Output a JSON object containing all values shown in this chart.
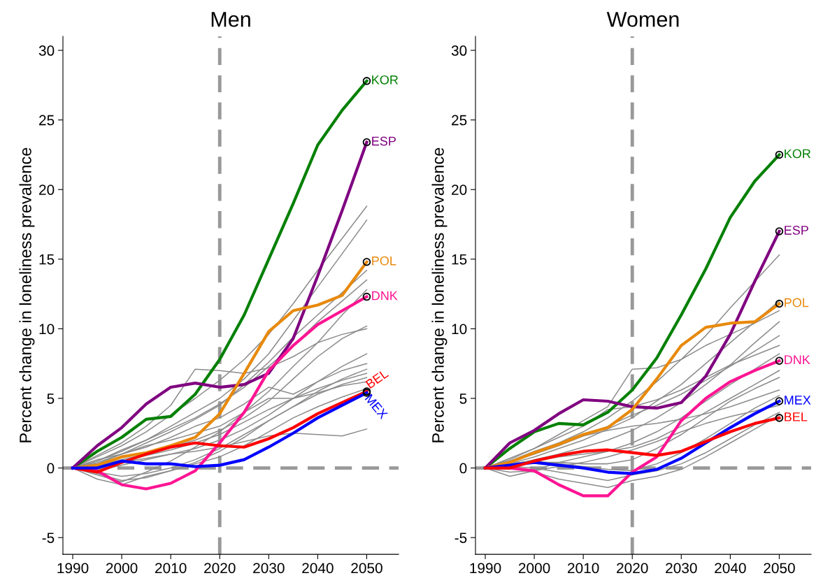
{
  "chart_data": [
    {
      "type": "line",
      "title": "Men",
      "ylabel": "Percent change in loneliness prevalence",
      "x": [
        1990,
        1995,
        2000,
        2005,
        2010,
        2015,
        2020,
        2025,
        2030,
        2035,
        2040,
        2045,
        2050
      ],
      "xlim": [
        1988,
        2056.5
      ],
      "xticks": [
        1990,
        2000,
        2010,
        2020,
        2030,
        2040,
        2050
      ],
      "ylim": [
        -6.2,
        31
      ],
      "yticks": [
        {
          "value": -5,
          "label": "-5"
        },
        0,
        5,
        10,
        15,
        20,
        25,
        30
      ],
      "grid": false,
      "legend": false,
      "ref_lines": [
        {
          "axis": "x",
          "value": 2020,
          "color": "#999999",
          "line_style": "dashed"
        },
        {
          "axis": "y",
          "value": 0,
          "color": "#999999",
          "line_style": "dashed"
        }
      ],
      "series": [
        {
          "color": "#8c8c8c",
          "values": [
            0,
            0.8,
            1.6,
            2.6,
            3.8,
            5.0,
            6.3,
            7.8,
            9.6,
            11.8,
            14.2,
            16.5,
            18.8
          ]
        },
        {
          "color": "#8c8c8c",
          "values": [
            0,
            0.5,
            1.2,
            2.0,
            3.0,
            4.0,
            5.0,
            6.4,
            8.2,
            10.6,
            13.0,
            15.4,
            17.8
          ]
        },
        {
          "color": "#8c8c8c",
          "values": [
            0,
            0.3,
            1.0,
            1.8,
            2.6,
            3.5,
            4.5,
            6.0,
            7.6,
            9.4,
            11.0,
            12.6,
            14.2
          ]
        },
        {
          "color": "#8c8c8c",
          "values": [
            0,
            0.5,
            1.3,
            2.0,
            2.8,
            3.6,
            4.6,
            5.8,
            7.3,
            8.8,
            10.5,
            12.0,
            13.5
          ]
        },
        {
          "color": "#8c8c8c",
          "values": [
            0,
            -0.5,
            -1.0,
            -0.3,
            0.5,
            1.5,
            2.6,
            4.0,
            5.5,
            7.3,
            9.0,
            11.0,
            12.8
          ]
        },
        {
          "color": "#8c8c8c",
          "values": [
            0,
            0.2,
            0.6,
            1.0,
            1.5,
            2.0,
            2.7,
            3.6,
            4.8,
            6.4,
            8.0,
            9.3,
            10.2
          ]
        },
        {
          "color": "#8c8c8c",
          "values": [
            0,
            0.9,
            1.8,
            3.0,
            4.5,
            7.1,
            7.0,
            6.8,
            7.2,
            8.0,
            9.0,
            9.6,
            10.0
          ]
        },
        {
          "color": "#8c8c8c",
          "values": [
            0,
            -0.2,
            0.2,
            0.6,
            1.0,
            1.4,
            2.0,
            2.8,
            3.8,
            5.0,
            6.2,
            7.3,
            8.2
          ]
        },
        {
          "color": "#8c8c8c",
          "values": [
            0,
            0.4,
            1.0,
            1.5,
            2.2,
            3.0,
            3.6,
            4.6,
            5.8,
            5.3,
            6.2,
            7.0,
            7.5
          ]
        },
        {
          "color": "#8c8c8c",
          "values": [
            0,
            -0.8,
            -1.2,
            -0.6,
            -0.2,
            0.4,
            1.2,
            2.2,
            3.4,
            4.4,
            5.5,
            6.4,
            7.1
          ]
        },
        {
          "color": "#8c8c8c",
          "values": [
            0,
            0.3,
            0.5,
            0.9,
            1.3,
            1.8,
            2.4,
            3.3,
            4.2,
            5.0,
            5.7,
            6.3,
            6.8
          ]
        },
        {
          "color": "#8c8c8c",
          "values": [
            0,
            -0.3,
            -0.6,
            -0.4,
            0.0,
            0.6,
            1.4,
            2.4,
            3.4,
            4.4,
            5.3,
            6.0,
            6.5
          ]
        },
        {
          "color": "#8c8c8c",
          "values": [
            0,
            0.6,
            1.0,
            1.6,
            2.0,
            2.5,
            3.0,
            4.0,
            5.0,
            5.0,
            5.4,
            5.9,
            6.2
          ]
        },
        {
          "color": "#8c8c8c",
          "values": [
            0,
            -0.4,
            -0.9,
            -0.7,
            -0.2,
            0.3,
            0.8,
            1.6,
            2.6,
            3.6,
            4.4,
            5.1,
            5.7
          ]
        },
        {
          "color": "#8c8c8c",
          "values": [
            0,
            0.2,
            0.4,
            0.7,
            1.0,
            1.2,
            1.5,
            1.9,
            2.3,
            2.5,
            2.4,
            2.3,
            2.8
          ]
        },
        {
          "name": "KOR",
          "color": "#008000",
          "values": [
            0,
            1.2,
            2.2,
            3.5,
            3.7,
            5.3,
            7.8,
            11.0,
            15.0,
            19.0,
            23.2,
            25.7,
            27.8
          ]
        },
        {
          "name": "ESP",
          "color": "#800080",
          "values": [
            0,
            1.6,
            2.9,
            4.6,
            5.8,
            6.1,
            5.8,
            6.0,
            6.8,
            9.3,
            13.8,
            18.5,
            23.4
          ]
        },
        {
          "name": "POL",
          "color": "#e8890c",
          "values": [
            0,
            0.2,
            0.8,
            1.1,
            1.6,
            2.2,
            3.9,
            6.8,
            9.8,
            11.3,
            11.7,
            12.4,
            14.8
          ]
        },
        {
          "name": "DNK",
          "color": "#ff1493",
          "values": [
            0,
            -0.2,
            -1.2,
            -1.5,
            -1.1,
            -0.2,
            1.8,
            4.0,
            7.0,
            8.8,
            10.3,
            11.3,
            12.3
          ]
        },
        {
          "name": "BEL",
          "color": "#ff0000",
          "values": [
            0,
            -0.3,
            0.4,
            1.0,
            1.5,
            1.8,
            1.6,
            1.5,
            2.1,
            2.9,
            3.9,
            4.7,
            5.5
          ]
        },
        {
          "name": "MEX",
          "color": "#0000ff",
          "values": [
            0,
            0.0,
            0.5,
            0.3,
            0.3,
            0.1,
            0.2,
            0.6,
            1.5,
            2.5,
            3.6,
            4.5,
            5.4
          ]
        }
      ]
    },
    {
      "type": "line",
      "title": "Women",
      "ylabel": "Percent change in loneliness prevalence",
      "x": [
        1990,
        1995,
        2000,
        2005,
        2010,
        2015,
        2020,
        2025,
        2030,
        2035,
        2040,
        2045,
        2050
      ],
      "xlim": [
        1988,
        2056.5
      ],
      "xticks": [
        1990,
        2000,
        2010,
        2020,
        2030,
        2040,
        2050
      ],
      "ylim": [
        -6.2,
        31
      ],
      "yticks": [
        {
          "value": -5,
          "label": "-5"
        },
        0,
        5,
        10,
        15,
        20,
        25,
        30
      ],
      "grid": false,
      "legend": false,
      "ref_lines": [
        {
          "axis": "x",
          "value": 2020,
          "color": "#999999",
          "line_style": "dashed"
        },
        {
          "axis": "y",
          "value": 0,
          "color": "#999999",
          "line_style": "dashed"
        }
      ],
      "series": [
        {
          "color": "#8c8c8c",
          "values": [
            0,
            0.5,
            1.0,
            1.8,
            2.6,
            3.6,
            4.8,
            6.2,
            7.8,
            9.5,
            11.5,
            13.4,
            15.3
          ]
        },
        {
          "color": "#8c8c8c",
          "values": [
            0,
            0.3,
            0.8,
            1.4,
            2.0,
            2.8,
            3.6,
            4.8,
            6.0,
            7.5,
            9.0,
            10.5,
            12.0
          ]
        },
        {
          "color": "#8c8c8c",
          "values": [
            0,
            0.6,
            1.4,
            2.4,
            3.4,
            4.4,
            7.1,
            7.2,
            7.8,
            8.8,
            9.6,
            10.4,
            11.3
          ]
        },
        {
          "color": "#8c8c8c",
          "values": [
            0,
            0.2,
            0.6,
            1.0,
            1.5,
            2.0,
            2.7,
            3.6,
            4.7,
            6.0,
            7.4,
            9.0,
            10.5
          ]
        },
        {
          "color": "#8c8c8c",
          "values": [
            0,
            0.4,
            1.0,
            1.6,
            2.3,
            3.0,
            3.8,
            4.5,
            5.3,
            6.3,
            7.3,
            8.4,
            9.5
          ]
        },
        {
          "color": "#8c8c8c",
          "values": [
            0,
            0.7,
            1.4,
            2.2,
            3.0,
            4.2,
            4.4,
            4.9,
            5.6,
            6.5,
            7.4,
            8.1,
            8.8
          ]
        },
        {
          "color": "#8c8c8c",
          "values": [
            0,
            -0.6,
            -0.2,
            0.4,
            0.8,
            1.2,
            1.8,
            2.6,
            3.6,
            4.8,
            6.0,
            7.1,
            8.2
          ]
        },
        {
          "color": "#8c8c8c",
          "values": [
            0,
            0.3,
            0.5,
            0.8,
            1.0,
            1.2,
            1.5,
            2.1,
            3.0,
            4.0,
            5.0,
            6.0,
            7.0
          ]
        },
        {
          "color": "#8c8c8c",
          "values": [
            0,
            0.2,
            0.4,
            0.4,
            0.3,
            0.3,
            0.6,
            1.4,
            2.4,
            3.6,
            4.8,
            5.7,
            6.5
          ]
        },
        {
          "color": "#8c8c8c",
          "values": [
            0,
            0.5,
            1.2,
            1.8,
            2.3,
            2.7,
            3.0,
            3.2,
            3.5,
            3.9,
            4.4,
            5.0,
            5.6
          ]
        },
        {
          "color": "#8c8c8c",
          "values": [
            0,
            0.3,
            0.5,
            0.3,
            0.1,
            -0.1,
            -0.2,
            0.3,
            1.1,
            2.1,
            3.2,
            4.3,
            5.2
          ]
        },
        {
          "color": "#8c8c8c",
          "values": [
            0,
            -0.3,
            -0.2,
            0.1,
            0.4,
            0.8,
            1.3,
            1.9,
            2.6,
            3.2,
            3.7,
            4.1,
            4.5
          ]
        },
        {
          "color": "#8c8c8c",
          "values": [
            0,
            0.1,
            0.0,
            -0.3,
            -0.6,
            -0.9,
            -0.5,
            -0.2,
            0.3,
            1.1,
            2.1,
            3.1,
            4.0
          ]
        },
        {
          "color": "#8c8c8c",
          "values": [
            0,
            0.0,
            -0.3,
            -0.8,
            -1.1,
            -1.4,
            -0.9,
            -0.6,
            -0.1,
            0.8,
            1.8,
            2.8,
            3.8
          ]
        },
        {
          "name": "KOR",
          "color": "#008000",
          "values": [
            0,
            1.4,
            2.6,
            3.2,
            3.1,
            4.0,
            5.6,
            7.9,
            11.0,
            14.3,
            18.0,
            20.6,
            22.5
          ]
        },
        {
          "name": "ESP",
          "color": "#800080",
          "values": [
            0,
            1.8,
            2.7,
            3.9,
            4.9,
            4.8,
            4.4,
            4.3,
            4.7,
            6.6,
            9.6,
            13.4,
            17.0
          ]
        },
        {
          "name": "POL",
          "color": "#e8890c",
          "values": [
            0,
            0.4,
            1.1,
            1.7,
            2.4,
            2.9,
            4.2,
            6.4,
            8.8,
            10.1,
            10.4,
            10.5,
            11.8
          ]
        },
        {
          "name": "DNK",
          "color": "#ff1493",
          "values": [
            0,
            0.0,
            -0.2,
            -1.2,
            -2.0,
            -2.0,
            -0.3,
            0.8,
            3.4,
            5.0,
            6.2,
            7.0,
            7.7
          ]
        },
        {
          "name": "MEX",
          "color": "#0000ff",
          "values": [
            0,
            0.2,
            0.4,
            0.2,
            0.0,
            -0.3,
            -0.4,
            -0.1,
            0.7,
            1.8,
            2.9,
            3.9,
            4.8
          ]
        },
        {
          "name": "BEL",
          "color": "#ff0000",
          "values": [
            0,
            0.0,
            0.5,
            0.9,
            1.2,
            1.3,
            1.1,
            0.9,
            1.2,
            1.9,
            2.6,
            3.2,
            3.6
          ]
        }
      ]
    }
  ]
}
